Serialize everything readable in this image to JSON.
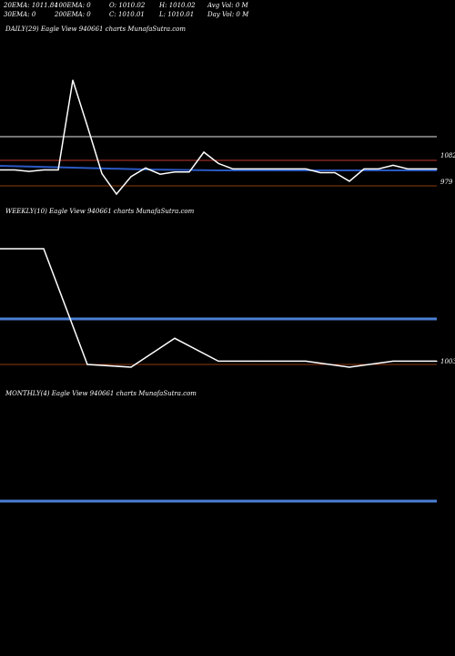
{
  "header": {
    "row1": {
      "ema20": "20EMA: 1011.84",
      "ema100": "100EMA: 0",
      "open": "O: 1010.02",
      "high": "H: 1010.02",
      "avgvol": "Avg Vol: 0  M"
    },
    "row2": {
      "ema30": "30EMA: 0",
      "ema200": "200EMA: 0",
      "close": "C: 1010.01",
      "low": "L: 1010.01",
      "dayvol": "Day Vol: 0  M"
    }
  },
  "colors": {
    "background": "#000000",
    "price_line": "#ffffff",
    "ema_line": "#2b59c3",
    "blue_band": "#4a7fd4",
    "grey_line": "#9a9a9a",
    "brown_line": "#8b3a0e",
    "red_line": "#c0392b"
  },
  "chart_data": [
    {
      "type": "line",
      "title": "DAILY(29) Eagle  View  940661 charts MunafaSutra.com",
      "right_labels": [
        "1082",
        "979"
      ],
      "series": [
        {
          "values": [
            997,
            997,
            992,
            997,
            997,
            1290,
            1140,
            985,
            918,
            975,
            1003,
            983,
            990,
            990,
            1055,
            1018,
            1000,
            1000,
            1000,
            1000,
            1000,
            1000,
            988,
            988,
            960,
            1000,
            1000,
            1012,
            1000,
            1000,
            1000
          ]
        }
      ]
    },
    {
      "type": "line",
      "title": "WEEKLY(10) Eagle  View  940661 charts MunafaSutra.com",
      "right_labels": [
        "1003"
      ],
      "series": [
        {
          "values": [
            1255,
            1255,
            1003,
            997,
            1060,
            1010,
            1010,
            1010,
            997,
            1010,
            1010
          ]
        }
      ]
    },
    {
      "type": "line",
      "title": "MONTHLY(4) Eagle  View  940661 charts MunafaSutra.com",
      "series": []
    }
  ]
}
